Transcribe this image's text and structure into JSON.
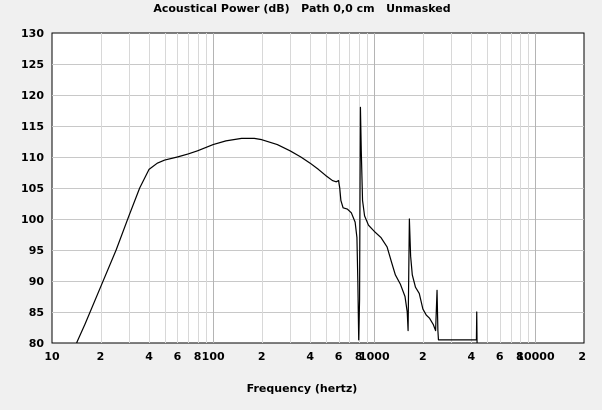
{
  "chart_data": {
    "type": "line",
    "title": "Acoustical Power (dB)   Path 0,0 cm   Unmasked",
    "xlabel": "Frequency (hertz)",
    "ylabel": "",
    "x_scale": "log",
    "xlim": [
      10,
      20000
    ],
    "ylim": [
      80,
      130
    ],
    "grid": true,
    "y_ticks": [
      80,
      85,
      90,
      95,
      100,
      105,
      110,
      115,
      120,
      125,
      130
    ],
    "x_tick_labels": [
      {
        "x": 10,
        "label": "10"
      },
      {
        "x": 20,
        "label": "2"
      },
      {
        "x": 40,
        "label": "4"
      },
      {
        "x": 60,
        "label": "6"
      },
      {
        "x": 80,
        "label": "8"
      },
      {
        "x": 100,
        "label": "100"
      },
      {
        "x": 200,
        "label": "2"
      },
      {
        "x": 400,
        "label": "4"
      },
      {
        "x": 600,
        "label": "6"
      },
      {
        "x": 800,
        "label": "8"
      },
      {
        "x": 1000,
        "label": "1000"
      },
      {
        "x": 2000,
        "label": "2"
      },
      {
        "x": 4000,
        "label": "4"
      },
      {
        "x": 6000,
        "label": "6"
      },
      {
        "x": 8000,
        "label": "8"
      },
      {
        "x": 10000,
        "label": "10000"
      },
      {
        "x": 20000,
        "label": "2"
      }
    ],
    "series": [
      {
        "color": "#000000",
        "points": [
          [
            14.2,
            80
          ],
          [
            16,
            83
          ],
          [
            20,
            89
          ],
          [
            25,
            95
          ],
          [
            30,
            100.5
          ],
          [
            35,
            105
          ],
          [
            40,
            108
          ],
          [
            45,
            109
          ],
          [
            50,
            109.5
          ],
          [
            60,
            110
          ],
          [
            70,
            110.5
          ],
          [
            80,
            111
          ],
          [
            100,
            112
          ],
          [
            120,
            112.6
          ],
          [
            150,
            113
          ],
          [
            180,
            113
          ],
          [
            200,
            112.8
          ],
          [
            250,
            112
          ],
          [
            300,
            111
          ],
          [
            350,
            110
          ],
          [
            400,
            109
          ],
          [
            450,
            108
          ],
          [
            500,
            107
          ],
          [
            550,
            106.2
          ],
          [
            580,
            106
          ],
          [
            600,
            106.2
          ],
          [
            610,
            105
          ],
          [
            620,
            103
          ],
          [
            640,
            101.8
          ],
          [
            680,
            101.6
          ],
          [
            720,
            101
          ],
          [
            760,
            99.5
          ],
          [
            780,
            97
          ],
          [
            790,
            90
          ],
          [
            800,
            80.5
          ],
          [
            810,
            87
          ],
          [
            815,
            104
          ],
          [
            820,
            118
          ],
          [
            830,
            111
          ],
          [
            845,
            103
          ],
          [
            870,
            100.5
          ],
          [
            920,
            99
          ],
          [
            1000,
            98
          ],
          [
            1100,
            97
          ],
          [
            1200,
            95.5
          ],
          [
            1280,
            93
          ],
          [
            1350,
            91
          ],
          [
            1450,
            89.5
          ],
          [
            1550,
            87.5
          ],
          [
            1600,
            85
          ],
          [
            1620,
            82
          ],
          [
            1650,
            100
          ],
          [
            1680,
            94
          ],
          [
            1720,
            91
          ],
          [
            1800,
            89
          ],
          [
            1900,
            88
          ],
          [
            2000,
            85.5
          ],
          [
            2100,
            84.5
          ],
          [
            2200,
            84
          ],
          [
            2320,
            83
          ],
          [
            2400,
            82
          ],
          [
            2450,
            88.5
          ],
          [
            2480,
            82
          ],
          [
            2500,
            80.5
          ],
          [
            4300,
            80.5
          ],
          [
            4320,
            85
          ],
          [
            4340,
            80
          ]
        ]
      }
    ]
  }
}
